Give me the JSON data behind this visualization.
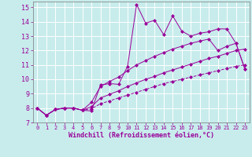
{
  "xlabel": "Windchill (Refroidissement éolien,°C)",
  "xlim": [
    -0.5,
    23.5
  ],
  "ylim": [
    7,
    15.4
  ],
  "xticks": [
    0,
    1,
    2,
    3,
    4,
    5,
    6,
    7,
    8,
    9,
    10,
    11,
    12,
    13,
    14,
    15,
    16,
    17,
    18,
    19,
    20,
    21,
    22,
    23
  ],
  "yticks": [
    7,
    8,
    9,
    10,
    11,
    12,
    13,
    14,
    15
  ],
  "background_color": "#c8ecec",
  "line_color": "#990099",
  "grid_color": "#b0d8d8",
  "series": [
    {
      "x": [
        0,
        1,
        2,
        3,
        4,
        5,
        6,
        7,
        8,
        9,
        10,
        11,
        12,
        13,
        14,
        15,
        16,
        17,
        18,
        19,
        20,
        21,
        22,
        23
      ],
      "y": [
        8.0,
        7.5,
        7.9,
        8.0,
        8.0,
        7.85,
        7.8,
        9.6,
        9.7,
        9.65,
        10.9,
        15.2,
        13.9,
        14.1,
        13.1,
        14.4,
        13.35,
        13.0,
        13.2,
        13.3,
        13.5,
        13.5,
        12.5,
        10.7
      ],
      "has_markers": true
    },
    {
      "x": [
        0,
        1,
        2,
        3,
        4,
        5,
        6,
        7,
        8,
        9,
        10,
        11,
        12,
        13,
        14,
        15,
        16,
        17,
        18,
        19,
        20,
        21,
        22,
        23
      ],
      "y": [
        8.0,
        7.5,
        7.9,
        8.0,
        8.0,
        7.85,
        8.4,
        9.5,
        9.85,
        10.15,
        10.6,
        11.0,
        11.3,
        11.6,
        11.85,
        12.1,
        12.3,
        12.5,
        12.65,
        12.8,
        12.0,
        12.3,
        12.5,
        10.7
      ],
      "has_markers": true
    },
    {
      "x": [
        0,
        1,
        2,
        3,
        4,
        5,
        6,
        7,
        8,
        9,
        10,
        11,
        12,
        13,
        14,
        15,
        16,
        17,
        18,
        19,
        20,
        21,
        22,
        23
      ],
      "y": [
        8.0,
        7.5,
        7.9,
        8.0,
        8.0,
        7.85,
        8.1,
        8.7,
        8.95,
        9.2,
        9.5,
        9.75,
        10.0,
        10.2,
        10.45,
        10.65,
        10.85,
        11.05,
        11.25,
        11.45,
        11.6,
        11.8,
        12.0,
        12.1
      ],
      "has_markers": true
    },
    {
      "x": [
        0,
        1,
        2,
        3,
        4,
        5,
        6,
        7,
        8,
        9,
        10,
        11,
        12,
        13,
        14,
        15,
        16,
        17,
        18,
        19,
        20,
        21,
        22,
        23
      ],
      "y": [
        8.0,
        7.5,
        7.9,
        8.0,
        8.0,
        7.85,
        7.95,
        8.3,
        8.5,
        8.7,
        8.9,
        9.1,
        9.3,
        9.5,
        9.7,
        9.85,
        10.0,
        10.15,
        10.3,
        10.45,
        10.6,
        10.75,
        10.9,
        11.0
      ],
      "has_markers": true
    }
  ]
}
